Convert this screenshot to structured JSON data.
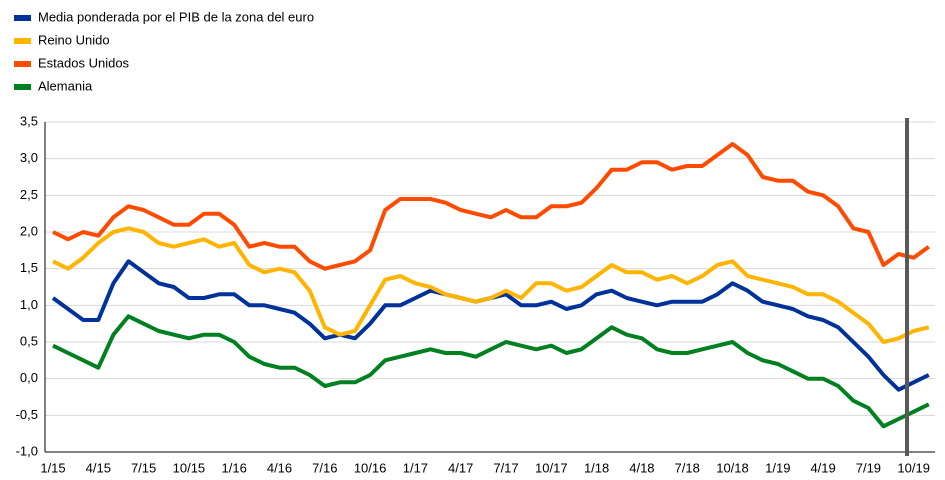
{
  "chart_data": {
    "type": "line",
    "categories": [
      "1/15",
      null,
      null,
      "4/15",
      null,
      null,
      "7/15",
      null,
      null,
      "10/15",
      null,
      null,
      "1/16",
      null,
      null,
      "4/16",
      null,
      null,
      "7/16",
      null,
      null,
      "10/16",
      null,
      null,
      "1/17",
      null,
      null,
      "4/17",
      null,
      null,
      "7/17",
      null,
      null,
      "10/17",
      null,
      null,
      "1/18",
      null,
      null,
      "4/18",
      null,
      null,
      "7/18",
      null,
      null,
      "10/18",
      null,
      null,
      "1/19",
      null,
      null,
      "4/19",
      null,
      null,
      "7/19",
      null,
      null,
      "10/19",
      null
    ],
    "series": [
      {
        "name": "Media ponderada por el PIB de la zona del euro",
        "color": "#003299",
        "values": [
          1.1,
          0.95,
          0.8,
          0.8,
          1.3,
          1.6,
          1.45,
          1.3,
          1.25,
          1.1,
          1.1,
          1.15,
          1.15,
          1.0,
          1.0,
          0.95,
          0.9,
          0.75,
          0.55,
          0.6,
          0.55,
          0.75,
          1.0,
          1.0,
          1.1,
          1.2,
          1.15,
          1.1,
          1.05,
          1.1,
          1.15,
          1.0,
          1.0,
          1.05,
          0.95,
          1.0,
          1.15,
          1.2,
          1.1,
          1.05,
          1.0,
          1.05,
          1.05,
          1.05,
          1.15,
          1.3,
          1.2,
          1.05,
          1.0,
          0.95,
          0.85,
          0.8,
          0.7,
          0.5,
          0.3,
          0.05,
          -0.15,
          -0.05,
          0.05
        ]
      },
      {
        "name": "Reino Unido",
        "color": "#ffb400",
        "values": [
          1.6,
          1.5,
          1.65,
          1.85,
          2.0,
          2.05,
          2.0,
          1.85,
          1.8,
          1.85,
          1.9,
          1.8,
          1.85,
          1.55,
          1.45,
          1.5,
          1.45,
          1.2,
          0.7,
          0.6,
          0.65,
          1.0,
          1.35,
          1.4,
          1.3,
          1.25,
          1.15,
          1.1,
          1.05,
          1.1,
          1.2,
          1.1,
          1.3,
          1.3,
          1.2,
          1.25,
          1.4,
          1.55,
          1.45,
          1.45,
          1.35,
          1.4,
          1.3,
          1.4,
          1.55,
          1.6,
          1.4,
          1.35,
          1.3,
          1.25,
          1.15,
          1.15,
          1.05,
          0.9,
          0.75,
          0.5,
          0.55,
          0.65,
          0.7
        ]
      },
      {
        "name": "Estados Unidos",
        "color": "#ff4b00",
        "values": [
          2.0,
          1.9,
          2.0,
          1.95,
          2.2,
          2.35,
          2.3,
          2.2,
          2.1,
          2.1,
          2.25,
          2.25,
          2.1,
          1.8,
          1.85,
          1.8,
          1.8,
          1.6,
          1.5,
          1.55,
          1.6,
          1.75,
          2.3,
          2.45,
          2.45,
          2.45,
          2.4,
          2.3,
          2.25,
          2.2,
          2.3,
          2.2,
          2.2,
          2.35,
          2.35,
          2.4,
          2.6,
          2.85,
          2.85,
          2.95,
          2.95,
          2.85,
          2.9,
          2.9,
          3.05,
          3.2,
          3.05,
          2.75,
          2.7,
          2.7,
          2.55,
          2.5,
          2.35,
          2.05,
          2.0,
          1.55,
          1.7,
          1.65,
          1.8
        ]
      },
      {
        "name": "Alemania",
        "color": "#008020",
        "values": [
          0.45,
          0.35,
          0.25,
          0.15,
          0.6,
          0.85,
          0.75,
          0.65,
          0.6,
          0.55,
          0.6,
          0.6,
          0.5,
          0.3,
          0.2,
          0.15,
          0.15,
          0.05,
          -0.1,
          -0.05,
          -0.05,
          0.05,
          0.25,
          0.3,
          0.35,
          0.4,
          0.35,
          0.35,
          0.3,
          0.4,
          0.5,
          0.45,
          0.4,
          0.45,
          0.35,
          0.4,
          0.55,
          0.7,
          0.6,
          0.55,
          0.4,
          0.35,
          0.35,
          0.4,
          0.45,
          0.5,
          0.35,
          0.25,
          0.2,
          0.1,
          0.0,
          0.0,
          -0.1,
          -0.3,
          -0.4,
          -0.65,
          -0.55,
          -0.45,
          -0.35
        ]
      }
    ],
    "ylim": [
      -1.0,
      3.5
    ],
    "yticks": [
      {
        "value": -1.0,
        "label": "-1,0"
      },
      {
        "value": -0.5,
        "label": "-0,5"
      },
      {
        "value": 0.0,
        "label": "0,0"
      },
      {
        "value": 0.5,
        "label": "0,5"
      },
      {
        "value": 1.0,
        "label": "1,0"
      },
      {
        "value": 1.5,
        "label": "1,5"
      },
      {
        "value": 2.0,
        "label": "2,0"
      },
      {
        "value": 2.5,
        "label": "2,5"
      },
      {
        "value": 3.0,
        "label": "3,0"
      },
      {
        "value": 3.5,
        "label": "3,5"
      }
    ],
    "grid": true,
    "legend": "top-left"
  }
}
